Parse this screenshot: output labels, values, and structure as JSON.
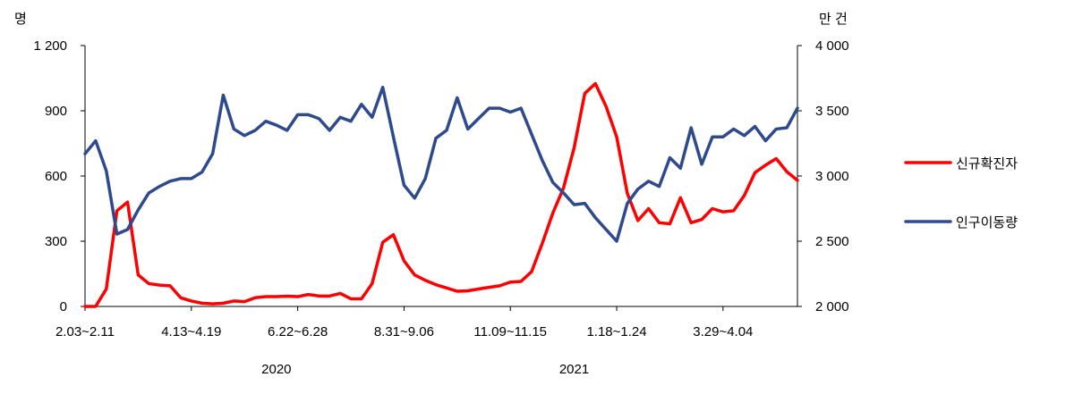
{
  "chart_data": {
    "type": "line",
    "left_axis": {
      "unit": "명",
      "min": 0,
      "max": 1200,
      "ticks": [
        0,
        300,
        600,
        900,
        1200
      ],
      "tick_labels": [
        "0",
        "300",
        "600",
        "900",
        "1 200"
      ]
    },
    "right_axis": {
      "unit": "만 건",
      "min": 2000,
      "max": 4000,
      "ticks": [
        2000,
        2500,
        3000,
        3500,
        4000
      ],
      "tick_labels": [
        "2 000",
        "2 500",
        "3 000",
        "3 500",
        "4 000"
      ]
    },
    "x_tick_labels": [
      {
        "index": 0,
        "label": "2.03~2.11"
      },
      {
        "index": 10,
        "label": "4.13~4.19"
      },
      {
        "index": 20,
        "label": "6.22~6.28"
      },
      {
        "index": 30,
        "label": "8.31~9.06"
      },
      {
        "index": 40,
        "label": "11.09~11.15"
      },
      {
        "index": 50,
        "label": "1.18~1.24"
      },
      {
        "index": 60,
        "label": "3.29~4.04"
      }
    ],
    "year_labels": [
      {
        "index": 18,
        "label": "2020"
      },
      {
        "index": 46,
        "label": "2021"
      }
    ],
    "grid": false,
    "legend_position": "right",
    "series": [
      {
        "name": "신규확진자",
        "axis": "left",
        "color": "#ff0000",
        "values": [
          0,
          0,
          80,
          440,
          480,
          145,
          105,
          98,
          95,
          40,
          25,
          15,
          12,
          15,
          25,
          22,
          40,
          45,
          45,
          47,
          45,
          55,
          48,
          48,
          60,
          35,
          35,
          105,
          295,
          330,
          210,
          145,
          120,
          100,
          85,
          70,
          72,
          80,
          88,
          95,
          112,
          115,
          160,
          290,
          430,
          545,
          730,
          980,
          1025,
          920,
          780,
          520,
          395,
          450,
          385,
          380,
          500,
          385,
          400,
          450,
          435,
          440,
          510,
          615,
          650,
          680,
          620,
          580
        ]
      },
      {
        "name": "인구이동량",
        "axis": "right",
        "color": "#2e4a8e",
        "values": [
          3170,
          3270,
          3040,
          2555,
          2590,
          2740,
          2870,
          2920,
          2960,
          2980,
          2980,
          3030,
          3170,
          3620,
          3360,
          3310,
          3350,
          3420,
          3390,
          3350,
          3470,
          3470,
          3440,
          3350,
          3450,
          3420,
          3550,
          3450,
          3680,
          3300,
          2930,
          2830,
          2980,
          3290,
          3350,
          3600,
          3360,
          3440,
          3520,
          3520,
          3490,
          3520,
          3320,
          3120,
          2950,
          2870,
          2780,
          2790,
          2680,
          2590,
          2500,
          2790,
          2900,
          2960,
          2920,
          3140,
          3060,
          3370,
          3090,
          3300,
          3300,
          3360,
          3310,
          3380,
          3270,
          3360,
          3370,
          3520
        ]
      }
    ]
  }
}
